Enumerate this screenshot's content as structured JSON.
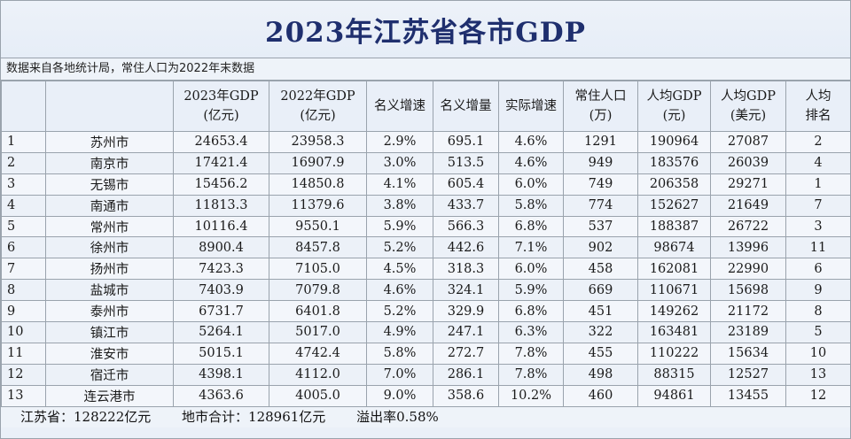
{
  "title": "2023年江苏省各市GDP",
  "source_note": "数据来自各地统计局，常住人口为2022年末数据",
  "headers": {
    "gdp2023_1": "2023年GDP",
    "gdp2023_2": "(亿元)",
    "gdp2022_1": "2022年GDP",
    "gdp2022_2": "(亿元)",
    "nominal_growth": "名义增速",
    "nominal_increase": "名义增量",
    "real_growth": "实际增速",
    "population_1": "常住人口",
    "population_2": "(万)",
    "per_capita_cny_1": "人均GDP",
    "per_capita_cny_2": "(元)",
    "per_capita_usd_1": "人均GDP",
    "per_capita_usd_2": "(美元)",
    "per_capita_rank_1": "人均",
    "per_capita_rank_2": "排名"
  },
  "rows": [
    {
      "no": "1",
      "city": "苏州市",
      "gdp2023": "24653.4",
      "gdp2022": "23958.3",
      "nominal_growth": "2.9%",
      "nominal_increase": "695.1",
      "real_growth": "4.6%",
      "population": "1291",
      "per_capita_cny": "190964",
      "per_capita_usd": "27087",
      "per_capita_rank": "2"
    },
    {
      "no": "2",
      "city": "南京市",
      "gdp2023": "17421.4",
      "gdp2022": "16907.9",
      "nominal_growth": "3.0%",
      "nominal_increase": "513.5",
      "real_growth": "4.6%",
      "population": "949",
      "per_capita_cny": "183576",
      "per_capita_usd": "26039",
      "per_capita_rank": "4"
    },
    {
      "no": "3",
      "city": "无锡市",
      "gdp2023": "15456.2",
      "gdp2022": "14850.8",
      "nominal_growth": "4.1%",
      "nominal_increase": "605.4",
      "real_growth": "6.0%",
      "population": "749",
      "per_capita_cny": "206358",
      "per_capita_usd": "29271",
      "per_capita_rank": "1"
    },
    {
      "no": "4",
      "city": "南通市",
      "gdp2023": "11813.3",
      "gdp2022": "11379.6",
      "nominal_growth": "3.8%",
      "nominal_increase": "433.7",
      "real_growth": "5.8%",
      "population": "774",
      "per_capita_cny": "152627",
      "per_capita_usd": "21649",
      "per_capita_rank": "7"
    },
    {
      "no": "5",
      "city": "常州市",
      "gdp2023": "10116.4",
      "gdp2022": "9550.1",
      "nominal_growth": "5.9%",
      "nominal_increase": "566.3",
      "real_growth": "6.8%",
      "population": "537",
      "per_capita_cny": "188387",
      "per_capita_usd": "26722",
      "per_capita_rank": "3"
    },
    {
      "no": "6",
      "city": "徐州市",
      "gdp2023": "8900.4",
      "gdp2022": "8457.8",
      "nominal_growth": "5.2%",
      "nominal_increase": "442.6",
      "real_growth": "7.1%",
      "population": "902",
      "per_capita_cny": "98674",
      "per_capita_usd": "13996",
      "per_capita_rank": "11"
    },
    {
      "no": "7",
      "city": "扬州市",
      "gdp2023": "7423.3",
      "gdp2022": "7105.0",
      "nominal_growth": "4.5%",
      "nominal_increase": "318.3",
      "real_growth": "6.0%",
      "population": "458",
      "per_capita_cny": "162081",
      "per_capita_usd": "22990",
      "per_capita_rank": "6"
    },
    {
      "no": "8",
      "city": "盐城市",
      "gdp2023": "7403.9",
      "gdp2022": "7079.8",
      "nominal_growth": "4.6%",
      "nominal_increase": "324.1",
      "real_growth": "5.9%",
      "population": "669",
      "per_capita_cny": "110671",
      "per_capita_usd": "15698",
      "per_capita_rank": "9"
    },
    {
      "no": "9",
      "city": "泰州市",
      "gdp2023": "6731.7",
      "gdp2022": "6401.8",
      "nominal_growth": "5.2%",
      "nominal_increase": "329.9",
      "real_growth": "6.8%",
      "population": "451",
      "per_capita_cny": "149262",
      "per_capita_usd": "21172",
      "per_capita_rank": "8"
    },
    {
      "no": "10",
      "city": "镇江市",
      "gdp2023": "5264.1",
      "gdp2022": "5017.0",
      "nominal_growth": "4.9%",
      "nominal_increase": "247.1",
      "real_growth": "6.3%",
      "population": "322",
      "per_capita_cny": "163481",
      "per_capita_usd": "23189",
      "per_capita_rank": "5"
    },
    {
      "no": "11",
      "city": "淮安市",
      "gdp2023": "5015.1",
      "gdp2022": "4742.4",
      "nominal_growth": "5.8%",
      "nominal_increase": "272.7",
      "real_growth": "7.8%",
      "population": "455",
      "per_capita_cny": "110222",
      "per_capita_usd": "15634",
      "per_capita_rank": "10"
    },
    {
      "no": "12",
      "city": "宿迁市",
      "gdp2023": "4398.1",
      "gdp2022": "4112.0",
      "nominal_growth": "7.0%",
      "nominal_increase": "286.1",
      "real_growth": "7.8%",
      "population": "498",
      "per_capita_cny": "88315",
      "per_capita_usd": "12527",
      "per_capita_rank": "13"
    },
    {
      "no": "13",
      "city": "连云港市",
      "gdp2023": "4363.6",
      "gdp2022": "4005.0",
      "nominal_growth": "9.0%",
      "nominal_increase": "358.6",
      "real_growth": "10.2%",
      "population": "460",
      "per_capita_cny": "94861",
      "per_capita_usd": "13455",
      "per_capita_rank": "12"
    }
  ],
  "footer": {
    "province_total": "江苏省：128222亿元",
    "cities_sum": "地市合计：128961亿元",
    "overflow_rate": "溢出率0.58%"
  }
}
